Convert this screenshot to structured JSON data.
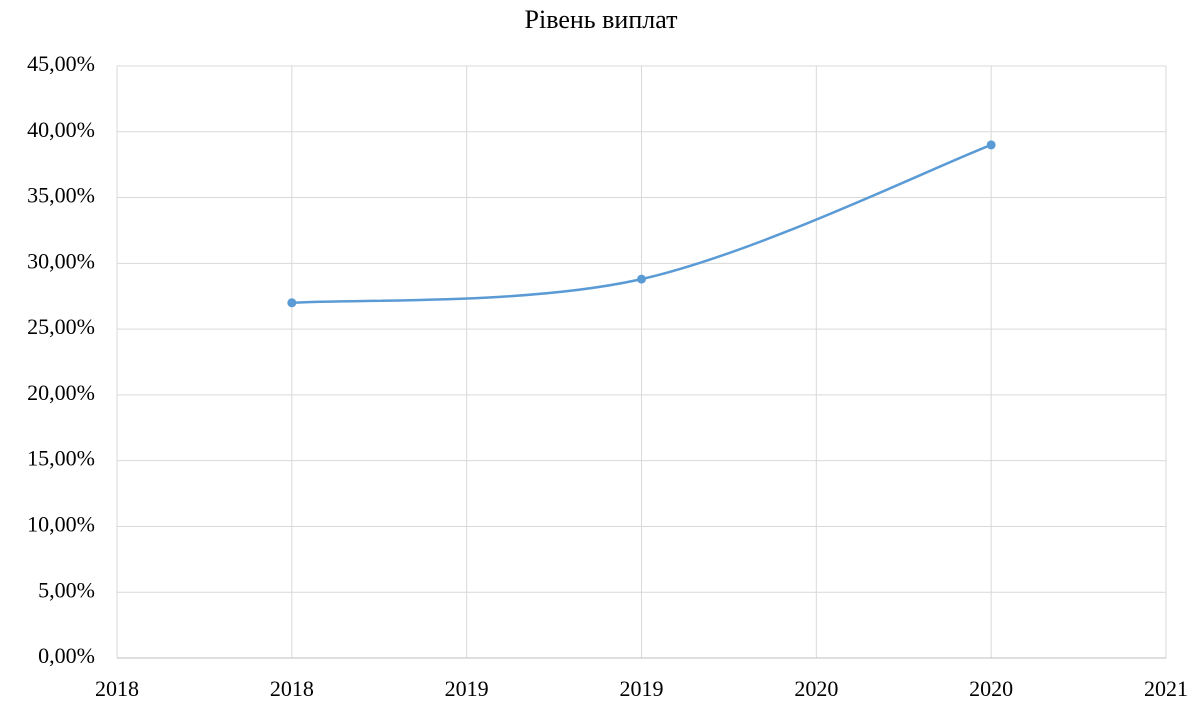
{
  "chart_data": {
    "type": "scatter",
    "title": "Рівень виплат",
    "series": [
      {
        "name": "Рівень виплат",
        "color": "#5b9bd5",
        "x": [
          2018,
          2019,
          2020
        ],
        "values": [
          27.0,
          28.8,
          39.0
        ]
      }
    ],
    "smooth": true,
    "markers": true,
    "xlim": [
      2017.5,
      2020.5
    ],
    "xticks": [
      {
        "value": 2017.5,
        "label": "2018"
      },
      2018,
      {
        "value": 2018.5,
        "label": "2019"
      },
      2019,
      {
        "value": 2019.5,
        "label": "2020"
      },
      2020,
      {
        "value": 2020.5,
        "label": "2021"
      }
    ],
    "ylim": [
      0,
      45
    ],
    "yticks": [
      {
        "value": 0,
        "label": "0,00%"
      },
      {
        "value": 5,
        "label": "5,00%"
      },
      {
        "value": 10,
        "label": "10,00%"
      },
      {
        "value": 15,
        "label": "15,00%"
      },
      {
        "value": 20,
        "label": "20,00%"
      },
      {
        "value": 25,
        "label": "25,00%"
      },
      {
        "value": 30,
        "label": "30,00%"
      },
      {
        "value": 35,
        "label": "35,00%"
      },
      {
        "value": 40,
        "label": "40,00%"
      },
      {
        "value": 45,
        "label": "45,00%"
      }
    ],
    "grid": true
  }
}
